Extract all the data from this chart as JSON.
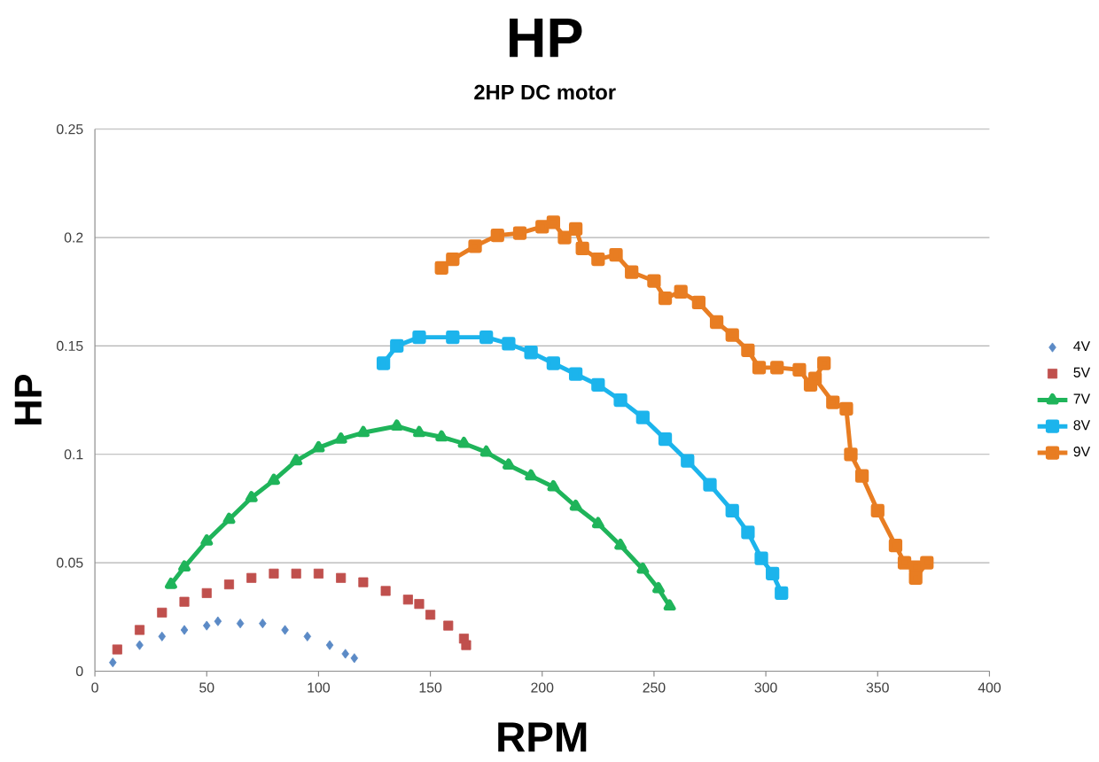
{
  "chart_data": {
    "type": "line",
    "title": "HP",
    "subtitle": "2HP DC motor",
    "xlabel": "RPM",
    "ylabel": "HP",
    "xlim": [
      0,
      400
    ],
    "xticks": [
      0,
      50,
      100,
      150,
      200,
      250,
      300,
      350,
      400
    ],
    "ylim": [
      0,
      0.25
    ],
    "yticks": [
      0,
      0.05,
      0.1,
      0.15,
      0.2,
      0.25
    ],
    "grid": "y",
    "legend": "right",
    "series": [
      {
        "name": "4V",
        "type": "scatter",
        "marker": "diamond",
        "color": "#5b8ac6",
        "x": [
          8,
          20,
          30,
          40,
          50,
          55,
          65,
          75,
          85,
          95,
          105,
          112,
          116
        ],
        "values": [
          0.004,
          0.012,
          0.016,
          0.019,
          0.021,
          0.023,
          0.022,
          0.022,
          0.019,
          0.016,
          0.012,
          0.008,
          0.006
        ]
      },
      {
        "name": "5V",
        "type": "scatter",
        "marker": "square",
        "color": "#c0504d",
        "x": [
          10,
          20,
          30,
          40,
          50,
          60,
          70,
          80,
          90,
          100,
          110,
          120,
          130,
          140,
          145,
          150,
          158,
          165,
          166
        ],
        "values": [
          0.01,
          0.019,
          0.027,
          0.032,
          0.036,
          0.04,
          0.043,
          0.045,
          0.045,
          0.045,
          0.043,
          0.041,
          0.037,
          0.033,
          0.031,
          0.026,
          0.021,
          0.015,
          0.012
        ]
      },
      {
        "name": "7V",
        "marker": "triangle",
        "color": "#1fb45a",
        "x": [
          34,
          40,
          50,
          60,
          70,
          80,
          90,
          100,
          110,
          120,
          135,
          145,
          155,
          165,
          175,
          185,
          195,
          205,
          215,
          225,
          235,
          245,
          252,
          257
        ],
        "values": [
          0.04,
          0.048,
          0.06,
          0.07,
          0.08,
          0.088,
          0.097,
          0.103,
          0.107,
          0.11,
          0.113,
          0.11,
          0.108,
          0.105,
          0.101,
          0.095,
          0.09,
          0.085,
          0.076,
          0.068,
          0.058,
          0.047,
          0.038,
          0.03
        ]
      },
      {
        "name": "8V",
        "marker": "square",
        "color": "#1cb4ec",
        "x": [
          129,
          135,
          145,
          160,
          175,
          185,
          195,
          205,
          215,
          225,
          235,
          245,
          255,
          265,
          275,
          285,
          292,
          298,
          303,
          307
        ],
        "values": [
          0.142,
          0.15,
          0.154,
          0.154,
          0.154,
          0.151,
          0.147,
          0.142,
          0.137,
          0.132,
          0.125,
          0.117,
          0.107,
          0.097,
          0.086,
          0.074,
          0.064,
          0.052,
          0.045,
          0.036
        ]
      },
      {
        "name": "9V",
        "marker": "square",
        "color": "#e87d22",
        "x": [
          155,
          160,
          170,
          180,
          190,
          200,
          205,
          210,
          215,
          218,
          225,
          233,
          240,
          250,
          255,
          262,
          270,
          278,
          285,
          292,
          297,
          305,
          315,
          320,
          326,
          322,
          330,
          336,
          338,
          343,
          350,
          358,
          362,
          367,
          372,
          367
        ],
        "values": [
          0.186,
          0.19,
          0.196,
          0.201,
          0.202,
          0.205,
          0.207,
          0.2,
          0.204,
          0.195,
          0.19,
          0.192,
          0.184,
          0.18,
          0.172,
          0.175,
          0.17,
          0.161,
          0.155,
          0.148,
          0.14,
          0.14,
          0.139,
          0.132,
          0.142,
          0.135,
          0.124,
          0.121,
          0.1,
          0.09,
          0.074,
          0.058,
          0.05,
          0.048,
          0.05,
          0.043
        ]
      }
    ]
  }
}
